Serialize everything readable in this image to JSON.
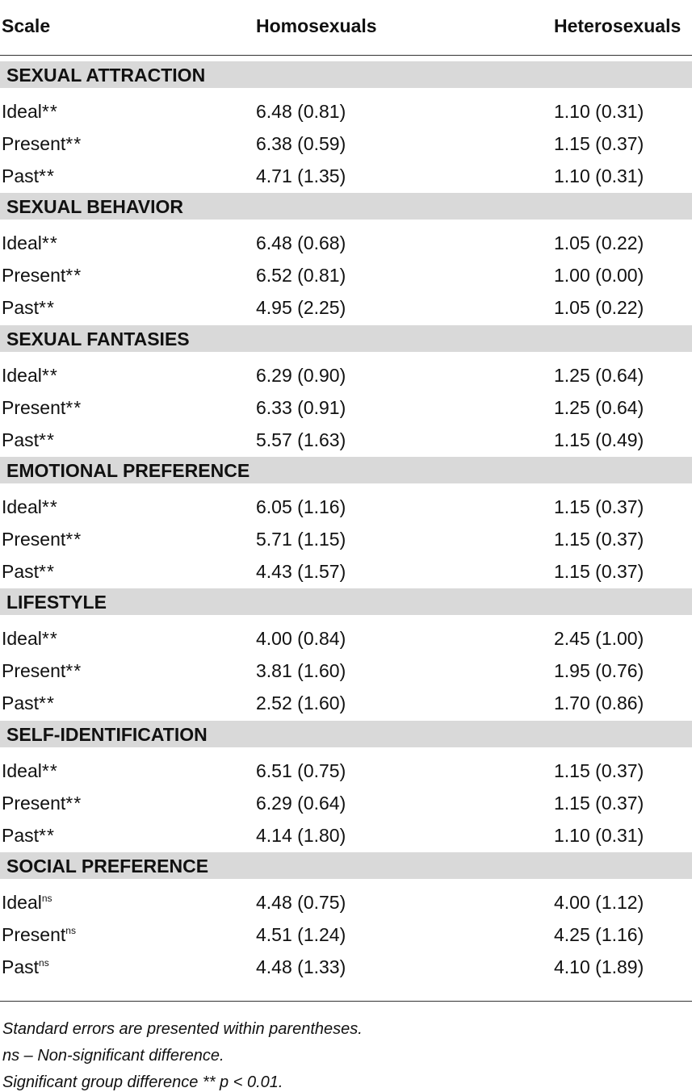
{
  "header": {
    "col1": "Scale",
    "col2": "Homosexuals",
    "col3": "Heterosexuals"
  },
  "sections": [
    {
      "title": "SEXUAL ATTRACTION",
      "rows": [
        {
          "label": "Ideal",
          "mark": "**",
          "homo": "6.48 (0.81)",
          "hetero": "1.10 (0.31)"
        },
        {
          "label": "Present",
          "mark": "**",
          "homo": "6.38 (0.59)",
          "hetero": "1.15 (0.37)"
        },
        {
          "label": "Past",
          "mark": "**",
          "homo": "4.71 (1.35)",
          "hetero": "1.10 (0.31)"
        }
      ]
    },
    {
      "title": "SEXUAL BEHAVIOR",
      "rows": [
        {
          "label": "Ideal",
          "mark": "**",
          "homo": "6.48 (0.68)",
          "hetero": "1.05 (0.22)"
        },
        {
          "label": "Present",
          "mark": "**",
          "homo": "6.52 (0.81)",
          "hetero": "1.00 (0.00)"
        },
        {
          "label": "Past",
          "mark": "**",
          "homo": "4.95 (2.25)",
          "hetero": "1.05 (0.22)"
        }
      ]
    },
    {
      "title": "SEXUAL FANTASIES",
      "rows": [
        {
          "label": "Ideal",
          "mark": "**",
          "homo": "6.29 (0.90)",
          "hetero": "1.25 (0.64)"
        },
        {
          "label": "Present",
          "mark": "**",
          "homo": "6.33 (0.91)",
          "hetero": "1.25 (0.64)"
        },
        {
          "label": "Past",
          "mark": "**",
          "homo": "5.57 (1.63)",
          "hetero": "1.15 (0.49)"
        }
      ]
    },
    {
      "title": "EMOTIONAL PREFERENCE",
      "rows": [
        {
          "label": "Ideal",
          "mark": "**",
          "homo": "6.05 (1.16)",
          "hetero": "1.15 (0.37)"
        },
        {
          "label": "Present",
          "mark": "**",
          "homo": "5.71 (1.15)",
          "hetero": "1.15 (0.37)"
        },
        {
          "label": "Past",
          "mark": "**",
          "homo": "4.43 (1.57)",
          "hetero": "1.15 (0.37)"
        }
      ]
    },
    {
      "title": "LIFESTYLE",
      "rows": [
        {
          "label": "Ideal",
          "mark": "**",
          "homo": "4.00 (0.84)",
          "hetero": "2.45 (1.00)"
        },
        {
          "label": "Present",
          "mark": "**",
          "homo": "3.81 (1.60)",
          "hetero": "1.95 (0.76)"
        },
        {
          "label": "Past",
          "mark": "**",
          "homo": "2.52 (1.60)",
          "hetero": "1.70 (0.86)"
        }
      ]
    },
    {
      "title": "SELF-IDENTIFICATION",
      "rows": [
        {
          "label": "Ideal",
          "mark": "**",
          "homo": "6.51 (0.75)",
          "hetero": "1.15 (0.37)"
        },
        {
          "label": "Present",
          "mark": "**",
          "homo": "6.29 (0.64)",
          "hetero": "1.15 (0.37)"
        },
        {
          "label": "Past",
          "mark": "**",
          "homo": "4.14 (1.80)",
          "hetero": "1.10 (0.31)"
        }
      ]
    },
    {
      "title": "SOCIAL PREFERENCE",
      "rows": [
        {
          "label": "Ideal",
          "sup": "ns",
          "homo": "4.48 (0.75)",
          "hetero": "4.00 (1.12)"
        },
        {
          "label": "Present",
          "sup": "ns",
          "homo": "4.51 (1.24)",
          "hetero": "4.25 (1.16)"
        },
        {
          "label": "Past",
          "sup": "ns",
          "homo": "4.48 (1.33)",
          "hetero": "4.10 (1.89)"
        }
      ]
    }
  ],
  "footnotes": [
    "Standard errors are presented within parentheses.",
    "ns – Non-significant difference.",
    "Significant group difference ** p < 0.01."
  ]
}
